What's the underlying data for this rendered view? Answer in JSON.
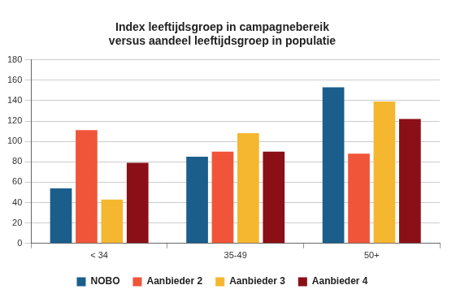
{
  "chart_data": {
    "type": "bar",
    "title": [
      "Index leeftijdsgroep in campagnebereik",
      "versus aandeel leeftijdsgroep in populatie"
    ],
    "categories": [
      "< 34",
      "35-49",
      "50+"
    ],
    "series": [
      {
        "name": "NOBO",
        "color": "#1b5e8c",
        "values": [
          54,
          85,
          153
        ]
      },
      {
        "name": "Aanbieder 2",
        "color": "#f0553a",
        "values": [
          111,
          90,
          88
        ]
      },
      {
        "name": "Aanbieder 3",
        "color": "#f5b730",
        "values": [
          43,
          108,
          139
        ]
      },
      {
        "name": "Aanbieder 4",
        "color": "#8b0f16",
        "values": [
          79,
          90,
          122
        ]
      }
    ],
    "ylim": [
      0,
      180
    ],
    "yticks": [
      0,
      20,
      40,
      60,
      80,
      100,
      120,
      140,
      160,
      180
    ],
    "grid": true,
    "legend": "bottom"
  }
}
